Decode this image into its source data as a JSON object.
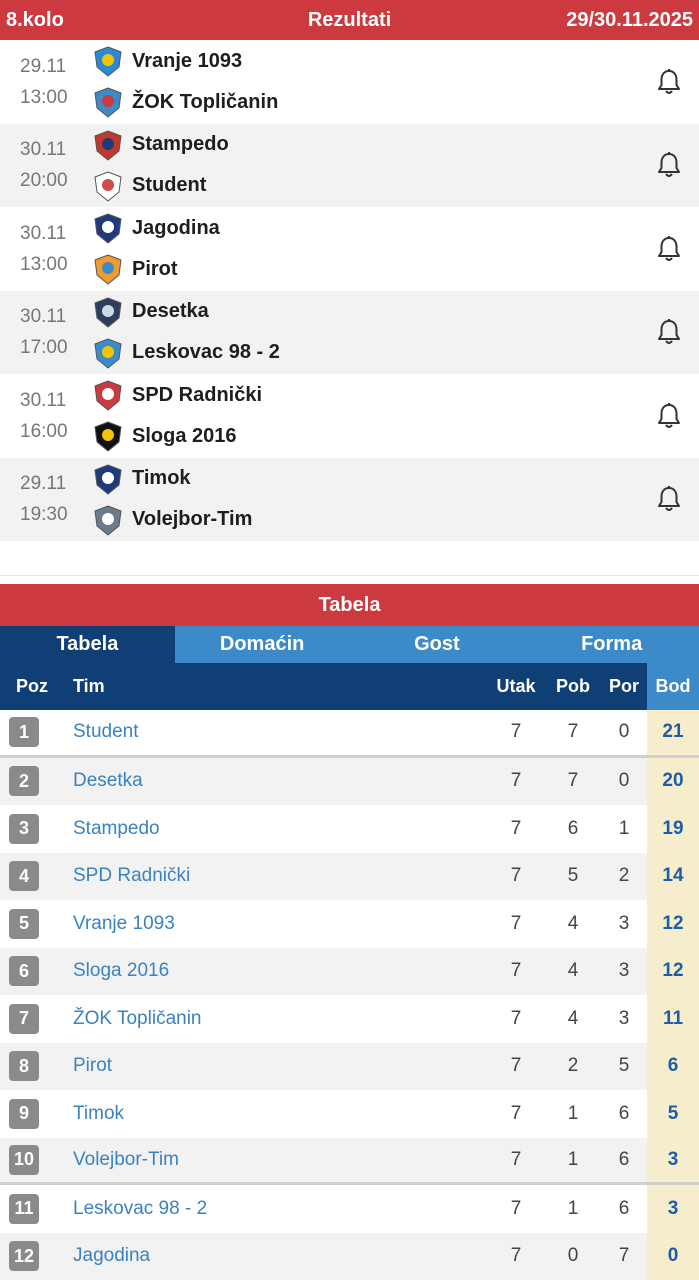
{
  "round": {
    "label": "8.kolo",
    "title": "Rezultati",
    "dates": "29/30.11.2025"
  },
  "matches": [
    {
      "date": "29.11",
      "time": "13:00",
      "home": "Vranje 1093",
      "away": "ŽOK Topličanin",
      "home_icon": "vranje-crest-icon",
      "away_icon": "toplicanin-crest-icon"
    },
    {
      "date": "30.11",
      "time": "20:00",
      "home": "Stampedo",
      "away": "Student",
      "home_icon": "stampedo-crest-icon",
      "away_icon": "student-crest-icon"
    },
    {
      "date": "30.11",
      "time": "13:00",
      "home": "Jagodina",
      "away": "Pirot",
      "home_icon": "jagodina-crest-icon",
      "away_icon": "pirot-crest-icon"
    },
    {
      "date": "30.11",
      "time": "17:00",
      "home": "Desetka",
      "away": "Leskovac 98 - 2",
      "home_icon": "desetka-crest-icon",
      "away_icon": "leskovac-crest-icon"
    },
    {
      "date": "30.11",
      "time": "16:00",
      "home": "SPD Radnički",
      "away": "Sloga 2016",
      "home_icon": "radnicki-crest-icon",
      "away_icon": "sloga-crest-icon"
    },
    {
      "date": "29.11",
      "time": "19:30",
      "home": "Timok",
      "away": "Volejbor-Tim",
      "home_icon": "timok-crest-icon",
      "away_icon": "volejbor-crest-icon"
    }
  ],
  "standings": {
    "title": "Tabela",
    "tabs": [
      "Tabela",
      "Domaćin",
      "Gost",
      "Forma"
    ],
    "active_tab": "Tabela",
    "columns": {
      "poz": "Poz",
      "tim": "Tim",
      "utak": "Utak",
      "pob": "Pob",
      "por": "Por",
      "bod": "Bod"
    },
    "rows": [
      {
        "poz": "1",
        "tim": "Student",
        "utak": "7",
        "pob": "7",
        "por": "0",
        "bod": "21"
      },
      {
        "poz": "2",
        "tim": "Desetka",
        "utak": "7",
        "pob": "7",
        "por": "0",
        "bod": "20"
      },
      {
        "poz": "3",
        "tim": "Stampedo",
        "utak": "7",
        "pob": "6",
        "por": "1",
        "bod": "19"
      },
      {
        "poz": "4",
        "tim": "SPD Radnički",
        "utak": "7",
        "pob": "5",
        "por": "2",
        "bod": "14"
      },
      {
        "poz": "5",
        "tim": "Vranje 1093",
        "utak": "7",
        "pob": "4",
        "por": "3",
        "bod": "12"
      },
      {
        "poz": "6",
        "tim": "Sloga 2016",
        "utak": "7",
        "pob": "4",
        "por": "3",
        "bod": "12"
      },
      {
        "poz": "7",
        "tim": "ŽOK Topličanin",
        "utak": "7",
        "pob": "4",
        "por": "3",
        "bod": "11"
      },
      {
        "poz": "8",
        "tim": "Pirot",
        "utak": "7",
        "pob": "2",
        "por": "5",
        "bod": "6"
      },
      {
        "poz": "9",
        "tim": "Timok",
        "utak": "7",
        "pob": "1",
        "por": "6",
        "bod": "5"
      },
      {
        "poz": "10",
        "tim": "Volejbor-Tim",
        "utak": "7",
        "pob": "1",
        "por": "6",
        "bod": "3"
      },
      {
        "poz": "11",
        "tim": "Leskovac 98 - 2",
        "utak": "7",
        "pob": "1",
        "por": "6",
        "bod": "3"
      },
      {
        "poz": "12",
        "tim": "Jagodina",
        "utak": "7",
        "pob": "0",
        "por": "7",
        "bod": "0"
      }
    ]
  },
  "colors": {
    "header_red": "#cc3a3f",
    "navy": "#0f3f74",
    "tab_blue": "#3d8ac9",
    "team_link": "#3a82c0",
    "bod_bg": "#f6edcc"
  }
}
